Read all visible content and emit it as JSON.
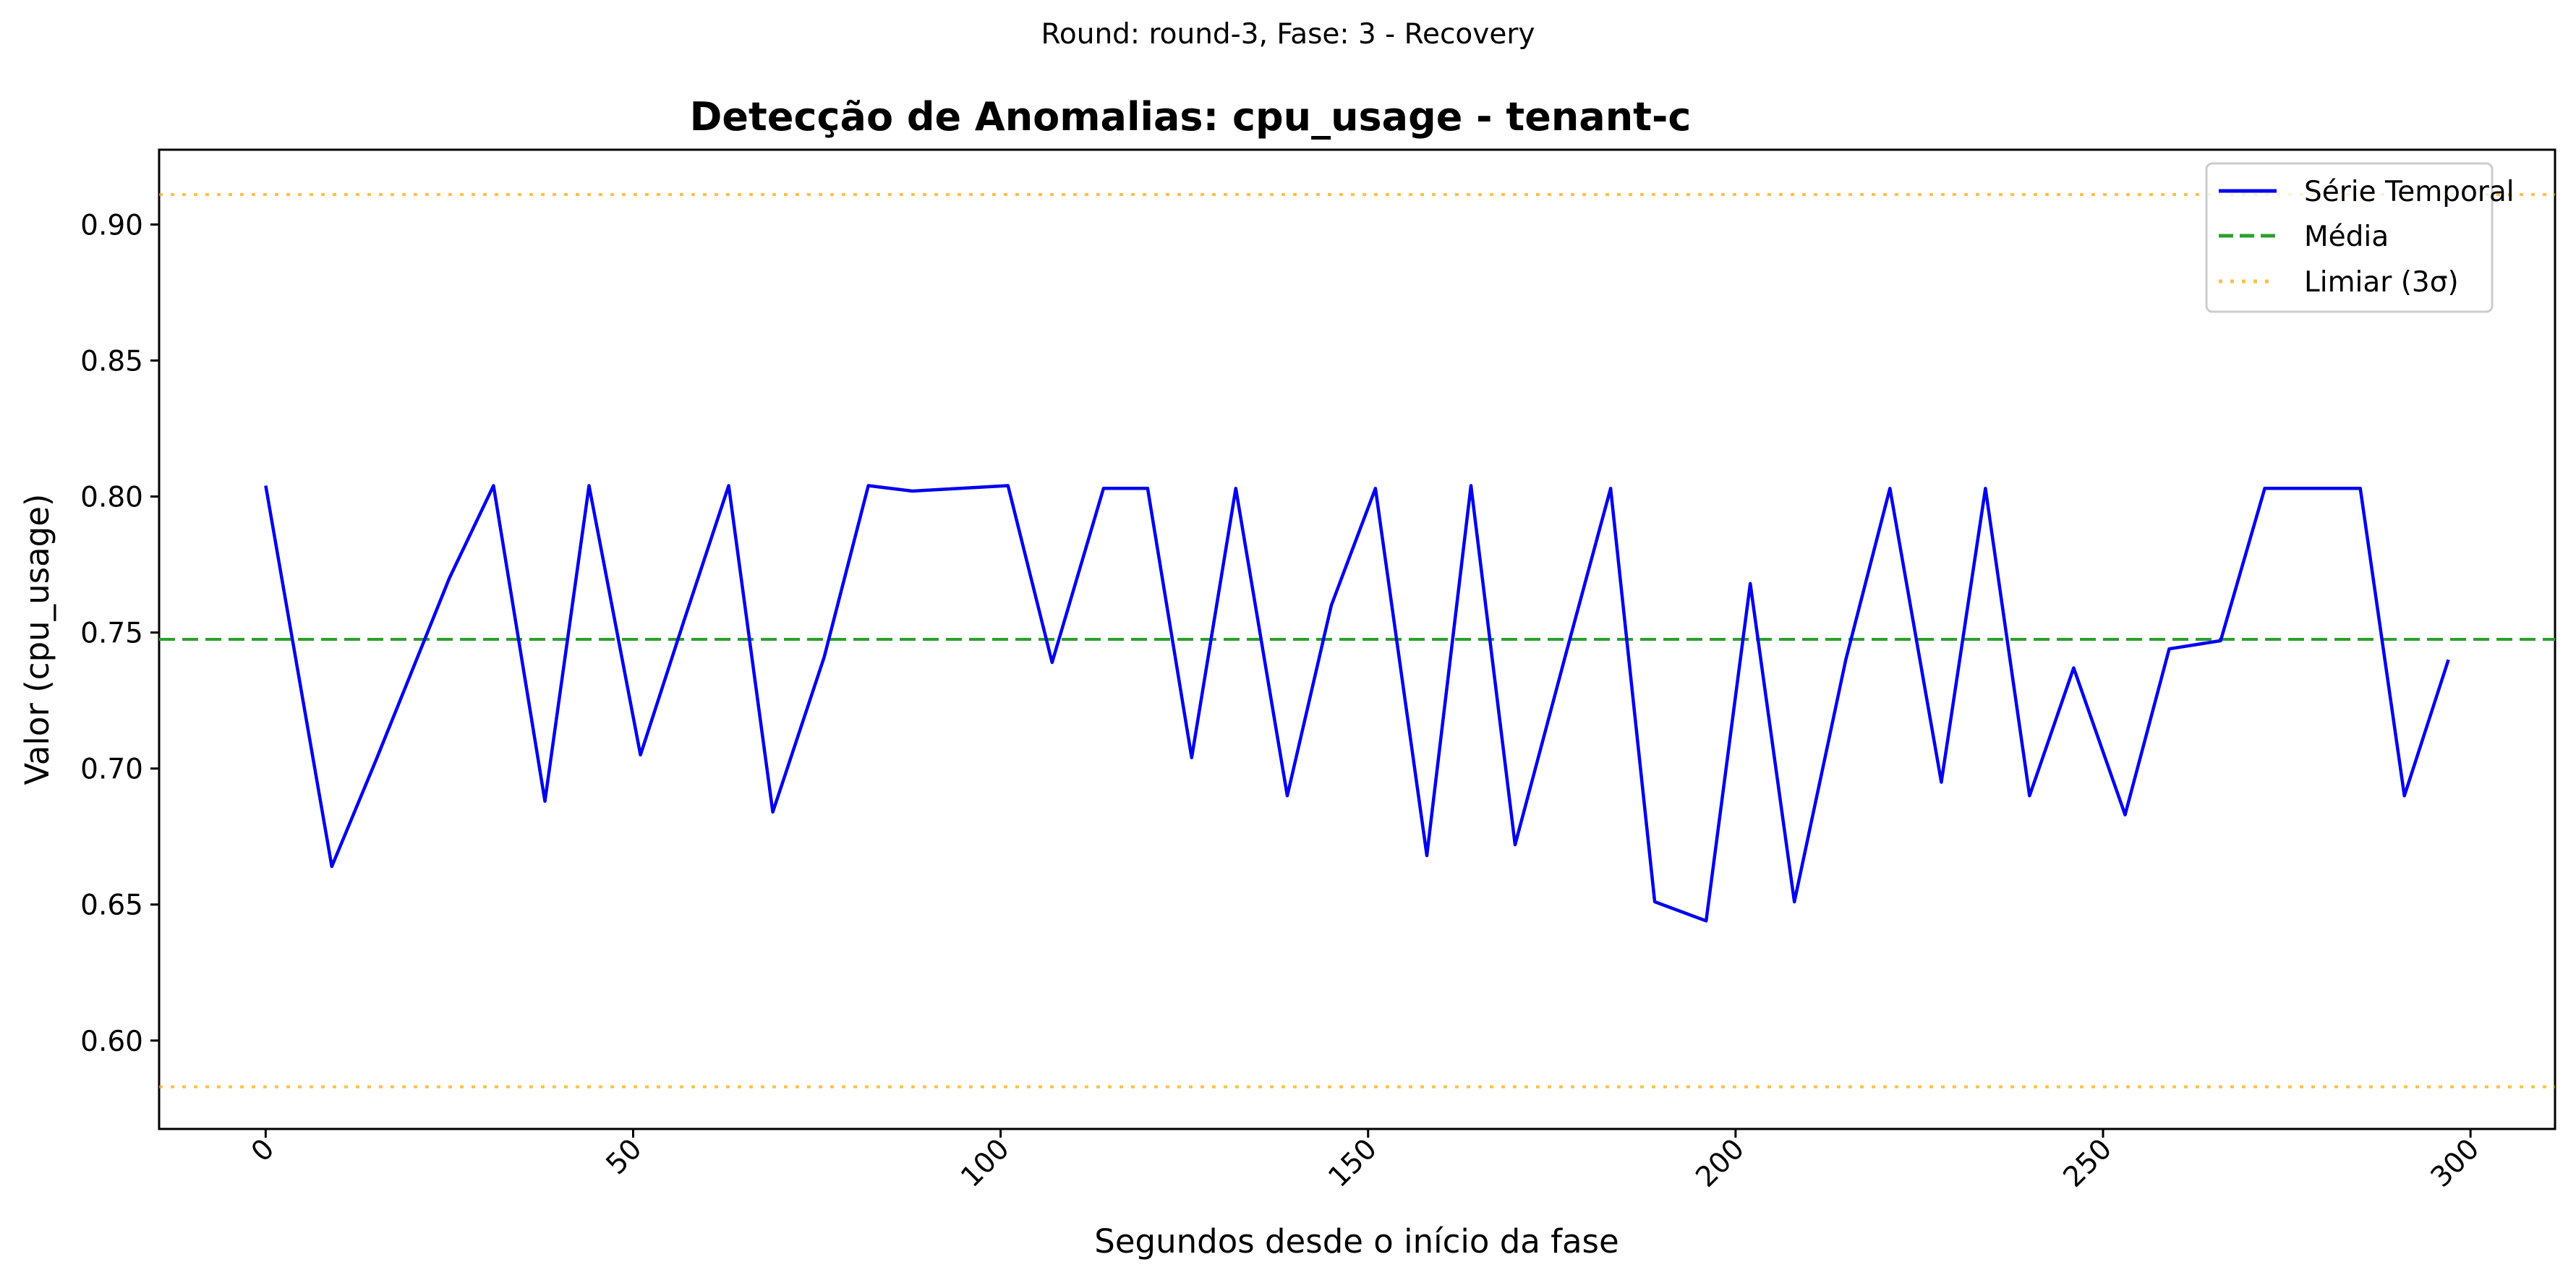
{
  "suptitle": "Round: round-3, Fase: 3 - Recovery",
  "legend": {
    "series": "Série Temporal",
    "mean": "Média",
    "threshold": "Limiar (3σ)"
  },
  "colors": {
    "series": "#0000ee",
    "mean": "#2ca02c",
    "threshold": "#ffa500"
  },
  "chart_data": {
    "type": "line",
    "title": "Detecção de Anomalias: cpu_usage - tenant-c",
    "xlabel": "Segundos desde o início da fase",
    "ylabel": "Valor (cpu_usage)",
    "xlim": [
      -14.5,
      311.5
    ],
    "ylim": [
      0.5675,
      0.9275
    ],
    "x_ticks": [
      0,
      50,
      100,
      150,
      200,
      250,
      300
    ],
    "y_ticks": [
      0.6,
      0.65,
      0.7,
      0.75,
      0.8,
      0.85,
      0.9
    ],
    "x_tick_labels": [
      "0",
      "50",
      "100",
      "150",
      "200",
      "250",
      "300"
    ],
    "y_tick_labels": [
      "0.60",
      "0.65",
      "0.70",
      "0.75",
      "0.80",
      "0.85",
      "0.90"
    ],
    "mean": 0.7475,
    "upper_threshold": 0.911,
    "lower_threshold": 0.583,
    "legend_position": "upper right",
    "grid": false,
    "series": [
      {
        "name": "Série Temporal",
        "x": [
          0,
          9,
          15,
          25,
          31,
          38,
          44,
          51,
          57,
          63,
          69,
          76,
          82,
          88,
          101,
          107,
          114,
          120,
          126,
          132,
          139,
          145,
          151,
          158,
          164,
          170,
          177,
          183,
          189,
          196,
          202,
          208,
          215,
          221,
          228,
          234,
          240,
          246,
          253,
          259,
          266,
          272,
          278,
          285,
          291,
          297
        ],
        "values": [
          0.804,
          0.664,
          0.703,
          0.77,
          0.804,
          0.688,
          0.804,
          0.705,
          0.755,
          0.804,
          0.684,
          0.741,
          0.804,
          0.802,
          0.804,
          0.739,
          0.803,
          0.803,
          0.704,
          0.803,
          0.69,
          0.76,
          0.803,
          0.668,
          0.804,
          0.672,
          0.743,
          0.803,
          0.651,
          0.644,
          0.768,
          0.651,
          0.74,
          0.803,
          0.695,
          0.803,
          0.69,
          0.737,
          0.683,
          0.744,
          0.747,
          0.803,
          0.803,
          0.803,
          0.69,
          0.74
        ]
      }
    ]
  }
}
